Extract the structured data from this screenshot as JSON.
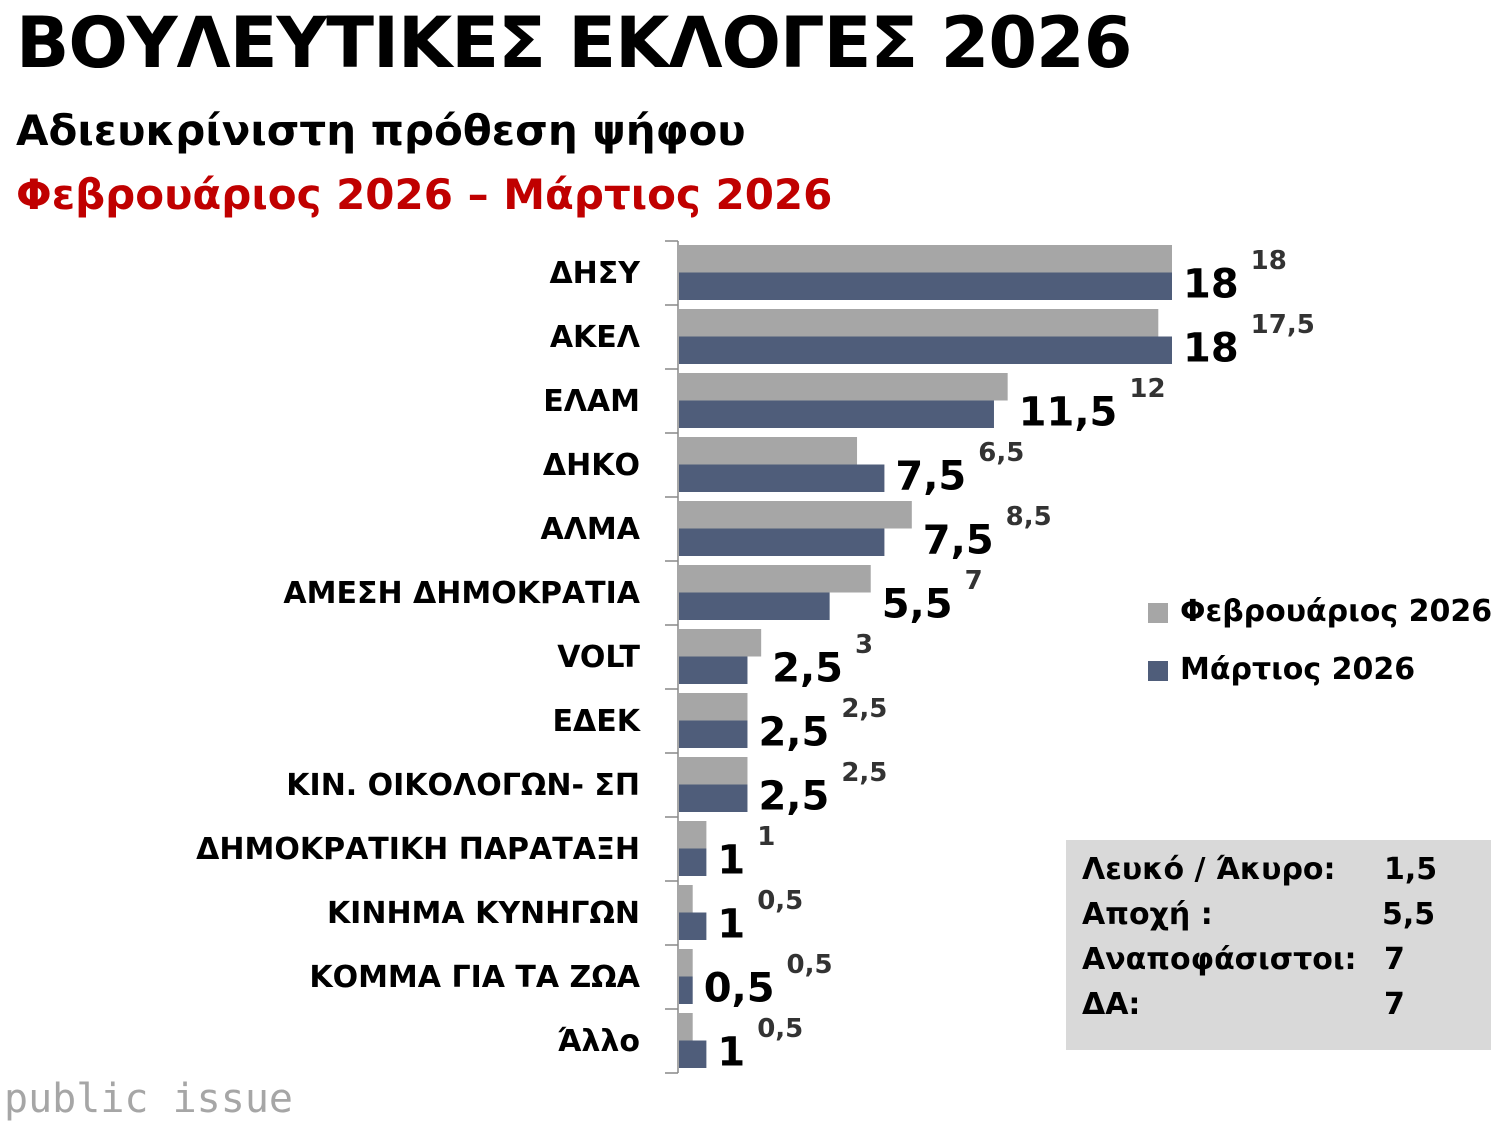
{
  "title": "ΒΟΥΛΕΥΤΙΚΕΣ ΕΚΛΟΓΕΣ 2026",
  "subtitle": "Αδιευκρίνιστη πρόθεση ψήφου",
  "period": "Φεβρουάριος 2026 – Μάρτιος 2026",
  "colors": {
    "feb": "#A6A6A6",
    "mar": "#4F5D7A",
    "period": "#C00000",
    "stats_bg": "#D9D9D9"
  },
  "chart_data": {
    "type": "bar",
    "orientation": "horizontal",
    "categories": [
      "ΔΗΣΥ",
      "ΑΚΕΛ",
      "ΕΛΑΜ",
      "ΔΗΚΟ",
      "ΑΛΜΑ",
      "ΑΜΕΣΗ ΔΗΜΟΚΡΑΤΙΑ",
      "VOLT",
      "ΕΔΕΚ",
      "ΚΙΝ. ΟΙΚΟΛΟΓΩΝ- ΣΠ",
      "ΔΗΜΟΚΡΑΤΙΚΗ ΠΑΡΑΤΑΞΗ",
      "ΚΙΝΗΜΑ ΚΥΝΗΓΩΝ",
      "ΚΟΜΜΑ ΓΙΑ ΤΑ ΖΩΑ",
      "Άλλο"
    ],
    "series": [
      {
        "name": "Φεβρουάριος 2026",
        "values": [
          18,
          17.5,
          12,
          6.5,
          8.5,
          7,
          3,
          2.5,
          2.5,
          1,
          0.5,
          0.5,
          0.5
        ],
        "labels": [
          "18",
          "17,5",
          "12",
          "6,5",
          "8,5",
          "7",
          "3",
          "2,5",
          "2,5",
          "1",
          "0,5",
          "0,5",
          "0,5"
        ]
      },
      {
        "name": "Μάρτιος 2026",
        "values": [
          18,
          18,
          11.5,
          7.5,
          7.5,
          5.5,
          2.5,
          2.5,
          2.5,
          1,
          1,
          0.5,
          1
        ],
        "labels": [
          "18",
          "18",
          "11,5",
          "7,5",
          "7,5",
          "5,5",
          "2,5",
          "2,5",
          "2,5",
          "1",
          "1",
          "0,5",
          "1"
        ]
      }
    ],
    "xlim": [
      0,
      18
    ],
    "grid": false,
    "legend": "right"
  },
  "legend": {
    "feb": "Φεβρουάριος 2026",
    "mar": "Μάρτιος 2026"
  },
  "stats": [
    {
      "label": "Λευκό / Άκυρο:",
      "value": "1,5"
    },
    {
      "label": "Αποχή :",
      "value": "5,5"
    },
    {
      "label": "Αναποφάσιστοι:",
      "value": "7"
    },
    {
      "label": "ΔΑ:",
      "value": "7"
    }
  ],
  "logo": "public issue"
}
